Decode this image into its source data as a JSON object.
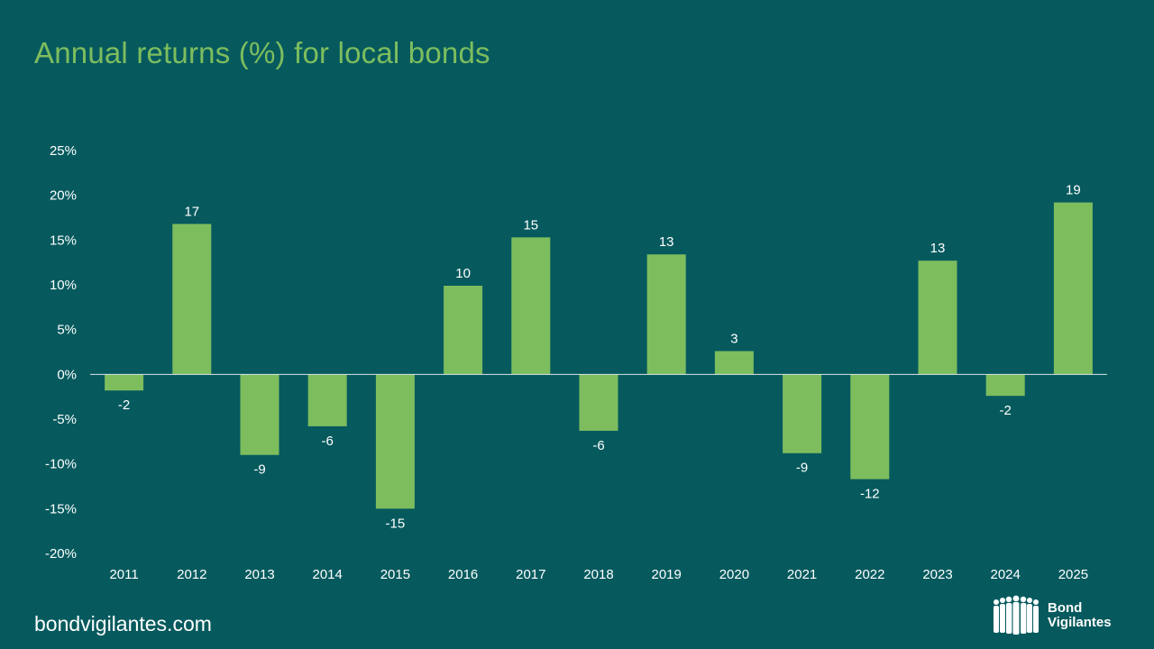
{
  "title": "Annual returns (%) for local bonds",
  "footer": {
    "url": "bondvigilantes.com",
    "logo_line1": "Bond",
    "logo_line2": "Vigilantes"
  },
  "colors": {
    "background": "#065a5e",
    "bar": "#7dbd5e",
    "title": "#7dbd5e",
    "text": "#ffffff"
  },
  "chart_data": {
    "type": "bar",
    "title": "Annual returns (%) for local bonds",
    "xlabel": "",
    "ylabel": "",
    "ylim": [
      -20,
      25
    ],
    "yticks": [
      "25%",
      "20%",
      "15%",
      "10%",
      "5%",
      "0%",
      "-5%",
      "-10%",
      "-15%",
      "-20%"
    ],
    "ytick_values": [
      25,
      20,
      15,
      10,
      5,
      0,
      -5,
      -10,
      -15,
      -20
    ],
    "categories": [
      "2011",
      "2012",
      "2013",
      "2014",
      "2015",
      "2016",
      "2017",
      "2018",
      "2019",
      "2020",
      "2021",
      "2022",
      "2023",
      "2024",
      "2025"
    ],
    "values": [
      -1.8,
      16.8,
      -9.0,
      -5.8,
      -15.0,
      9.9,
      15.3,
      -6.3,
      13.4,
      2.6,
      -8.8,
      -11.7,
      12.7,
      -2.4,
      19.2
    ],
    "data_labels": [
      "-2",
      "17",
      "-9",
      "-6",
      "-15",
      "10",
      "15",
      "-6",
      "13",
      "3",
      "-9",
      "-12",
      "13",
      "-2",
      "19"
    ],
    "grid": false,
    "legend": "none"
  }
}
